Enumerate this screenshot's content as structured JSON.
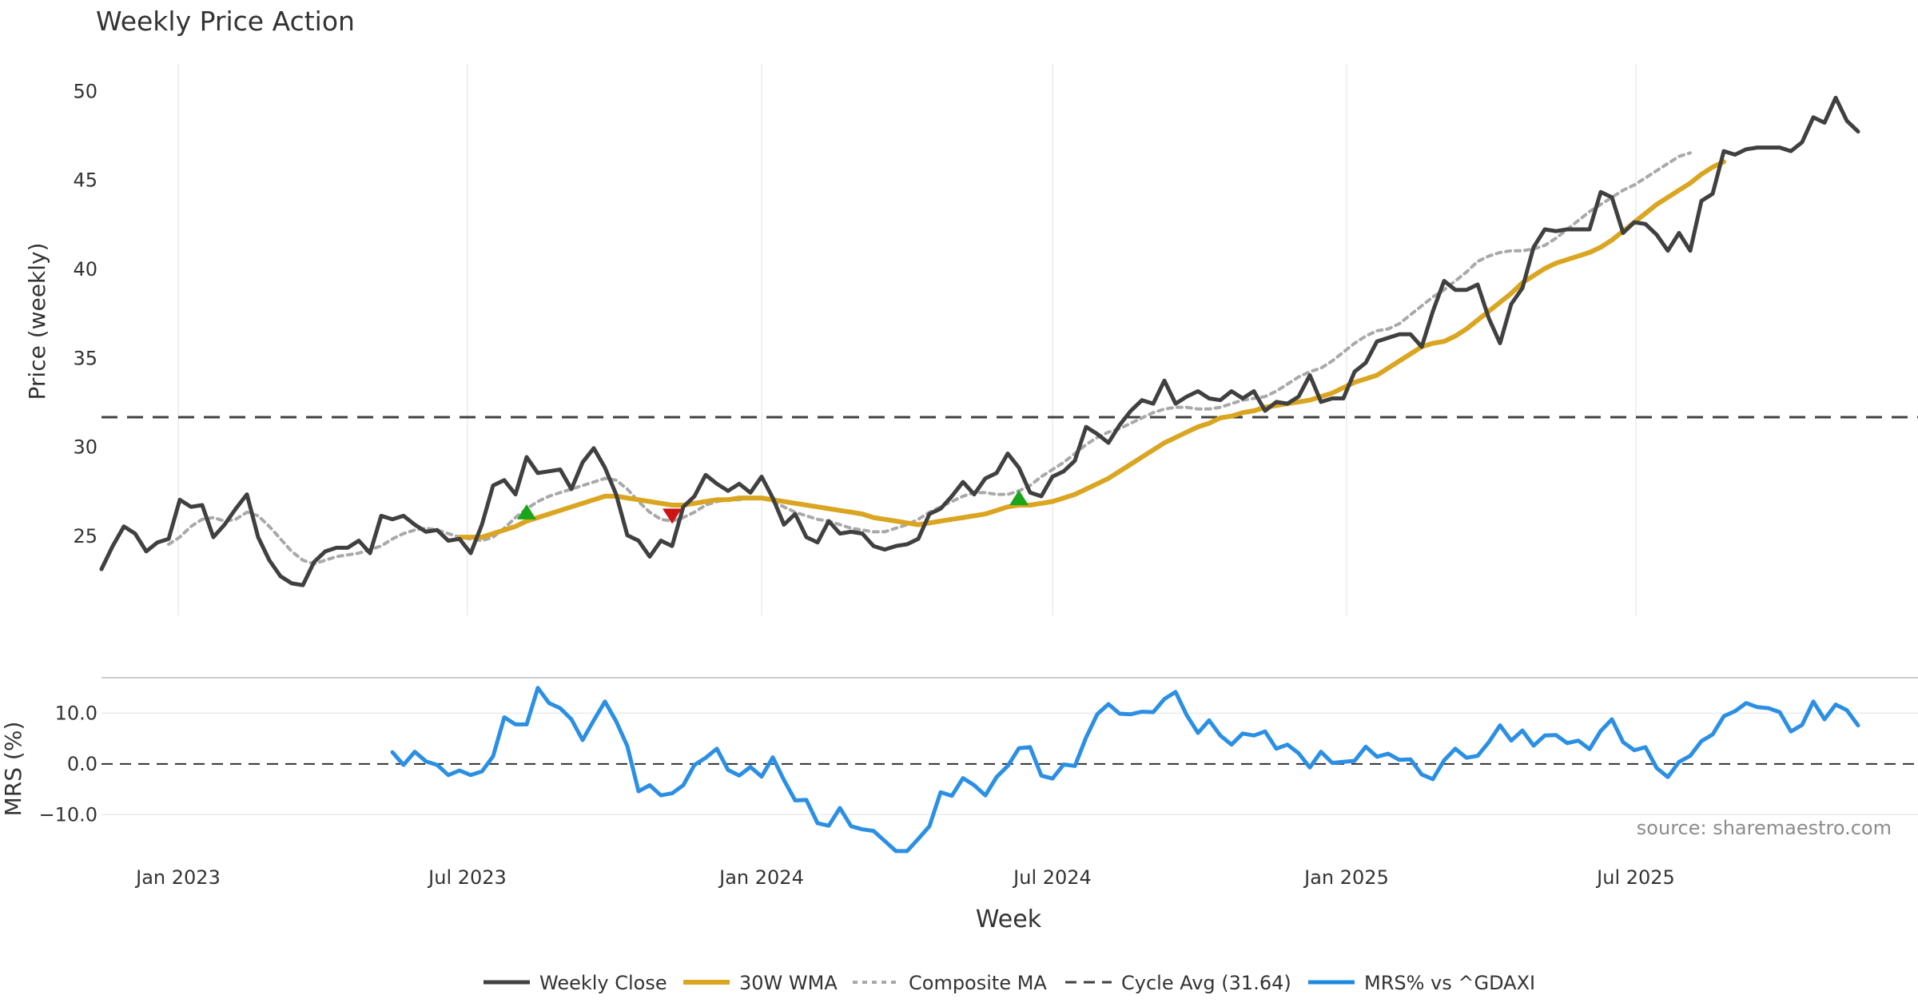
{
  "chart_data": {
    "type": "line",
    "title": "Weekly Price Action",
    "source": "source: sharemaestro.com",
    "price_panel": {
      "ylabel": "Price (weekly)",
      "ylim": [
        20.5,
        51.5
      ],
      "yticks": [
        25,
        30,
        35,
        40,
        45,
        50
      ],
      "grid": "vertical",
      "cycle_avg": 31.64,
      "start_date": "2022-11-14",
      "weekly_close": [
        23.1,
        24.4,
        25.5,
        25.1,
        24.1,
        24.6,
        24.8,
        27.0,
        26.6,
        26.7,
        24.9,
        25.6,
        26.5,
        27.3,
        24.9,
        23.6,
        22.7,
        22.3,
        22.2,
        23.5,
        24.1,
        24.3,
        24.3,
        24.7,
        24.0,
        26.1,
        25.9,
        26.1,
        25.6,
        25.2,
        25.3,
        24.7,
        24.8,
        24.0,
        25.6,
        27.8,
        28.1,
        27.3,
        29.4,
        28.5,
        28.6,
        28.7,
        27.6,
        29.1,
        29.9,
        28.8,
        27.3,
        25.0,
        24.7,
        23.8,
        24.7,
        24.4,
        26.6,
        27.2,
        28.4,
        27.9,
        27.5,
        27.9,
        27.4,
        28.3,
        27.1,
        25.6,
        26.2,
        24.9,
        24.6,
        25.8,
        25.1,
        25.2,
        25.1,
        24.4,
        24.2,
        24.4,
        24.5,
        24.8,
        26.2,
        26.5,
        27.2,
        28.0,
        27.3,
        28.2,
        28.5,
        29.6,
        28.8,
        27.4,
        27.2,
        28.3,
        28.6,
        29.2,
        31.1,
        30.7,
        30.2,
        31.2,
        32.0,
        32.6,
        32.4,
        33.7,
        32.4,
        32.8,
        33.1,
        32.7,
        32.6,
        33.1,
        32.7,
        33.1,
        32.0,
        32.5,
        32.4,
        32.8,
        34.0,
        32.5,
        32.7,
        32.7,
        34.2,
        34.7,
        35.9,
        36.1,
        36.3,
        36.3,
        35.6,
        37.6,
        39.3,
        38.8,
        38.8,
        39.1,
        37.2,
        35.8,
        38.0,
        38.9,
        41.2,
        42.2,
        42.1,
        42.2,
        42.2,
        42.2,
        44.3,
        44.0,
        42.0,
        42.6,
        42.5,
        41.9,
        41.0,
        42.0,
        41.0,
        43.8,
        44.2,
        46.6,
        46.4,
        46.7,
        46.8,
        46.8,
        46.8,
        46.6,
        47.1,
        48.5,
        48.2,
        49.6,
        48.3,
        47.7
      ],
      "wma_30w": {
        "start_index": 32,
        "values": [
          24.9,
          24.9,
          24.9,
          25.1,
          25.3,
          25.5,
          25.8,
          26.0,
          26.2,
          26.4,
          26.6,
          26.8,
          27.0,
          27.2,
          27.2,
          27.1,
          27.0,
          26.9,
          26.8,
          26.7,
          26.7,
          26.8,
          26.9,
          27.0,
          27.0,
          27.1,
          27.1,
          27.1,
          27.0,
          26.9,
          26.8,
          26.7,
          26.6,
          26.5,
          26.4,
          26.3,
          26.2,
          26.0,
          25.9,
          25.8,
          25.7,
          25.6,
          25.7,
          25.8,
          25.9,
          26.0,
          26.1,
          26.2,
          26.4,
          26.6,
          26.7,
          26.7,
          26.8,
          26.9,
          27.1,
          27.3,
          27.6,
          27.9,
          28.2,
          28.6,
          29.0,
          29.4,
          29.8,
          30.2,
          30.5,
          30.8,
          31.1,
          31.3,
          31.6,
          31.7,
          31.9,
          32.0,
          32.2,
          32.3,
          32.4,
          32.5,
          32.6,
          32.8,
          33.0,
          33.3,
          33.6,
          33.8,
          34.0,
          34.4,
          34.8,
          35.2,
          35.6,
          35.8,
          35.9,
          36.2,
          36.6,
          37.1,
          37.6,
          38.1,
          38.6,
          39.2,
          39.6,
          40.0,
          40.3,
          40.5,
          40.7,
          40.9,
          41.2,
          41.6,
          42.1,
          42.6,
          43.1,
          43.6,
          44.0,
          44.4,
          44.8,
          45.3,
          45.7,
          46.0
        ]
      },
      "composite_ma": {
        "start_index": 6,
        "values": [
          24.5,
          24.9,
          25.5,
          25.9,
          26.0,
          25.8,
          25.9,
          26.3,
          26.1,
          25.5,
          24.8,
          24.1,
          23.6,
          23.4,
          23.6,
          23.8,
          23.9,
          24.0,
          24.2,
          24.4,
          24.8,
          25.1,
          25.3,
          25.4,
          25.3,
          25.1,
          24.9,
          24.8,
          24.7,
          24.9,
          25.4,
          26.0,
          26.5,
          26.9,
          27.2,
          27.4,
          27.6,
          27.8,
          28.0,
          28.2,
          28.1,
          27.6,
          26.9,
          26.3,
          25.9,
          25.8,
          26.0,
          26.3,
          26.7,
          26.9,
          27.0,
          27.0,
          27.1,
          27.1,
          26.9,
          26.6,
          26.3,
          26.1,
          25.9,
          25.8,
          25.6,
          25.4,
          25.3,
          25.2,
          25.2,
          25.4,
          25.6,
          25.9,
          26.3,
          26.6,
          26.9,
          27.2,
          27.4,
          27.4,
          27.3,
          27.3,
          27.5,
          27.8,
          28.3,
          28.7,
          29.1,
          29.6,
          30.1,
          30.5,
          30.8,
          31.0,
          31.3,
          31.6,
          31.9,
          32.1,
          32.2,
          32.2,
          32.1,
          32.1,
          32.2,
          32.4,
          32.6,
          32.7,
          32.8,
          33.1,
          33.5,
          33.9,
          34.2,
          34.4,
          34.8,
          35.3,
          35.8,
          36.2,
          36.5,
          36.6,
          36.9,
          37.4,
          37.9,
          38.4,
          38.8,
          39.3,
          39.8,
          40.4,
          40.7,
          40.9,
          41.0,
          41.0,
          41.1,
          41.3,
          41.7,
          42.2,
          42.7,
          43.2,
          43.6,
          44.0,
          44.4,
          44.7,
          45.1,
          45.5,
          45.9,
          46.3,
          46.5
        ]
      },
      "signals": [
        {
          "type": "buy",
          "index": 38,
          "value": 26.3
        },
        {
          "type": "sell",
          "index": 51,
          "value": 26.1
        },
        {
          "type": "buy",
          "index": 82,
          "value": 27.1
        }
      ]
    },
    "mrs_panel": {
      "ylabel": "MRS (%)",
      "ylim": [
        -18,
        17
      ],
      "yticks": [
        10.0,
        0.0,
        -10.0
      ],
      "ytick_labels": [
        "10.0",
        "0.0",
        "−10.0"
      ],
      "start_index": 26,
      "values": [
        2.3,
        -0.2,
        2.4,
        0.5,
        -0.2,
        -2.2,
        -1.3,
        -2.2,
        -1.5,
        1.5,
        9.2,
        7.8,
        7.8,
        15.0,
        12.0,
        11.0,
        8.8,
        4.7,
        8.6,
        12.3,
        8.4,
        3.5,
        -5.4,
        -4.2,
        -6.2,
        -5.8,
        -4.2,
        -0.2,
        1.2,
        3.0,
        -1.2,
        -2.3,
        -0.6,
        -2.5,
        1.3,
        -3.2,
        -7.2,
        -7.1,
        -11.7,
        -12.2,
        -8.7,
        -12.3,
        -12.9,
        -13.2,
        -15.2,
        -17.2,
        -17.2,
        -14.8,
        -12.3,
        -5.6,
        -6.3,
        -2.8,
        -4.2,
        -6.2,
        -2.6,
        -0.4,
        3.1,
        3.3,
        -2.3,
        -2.9,
        -0.1,
        -0.4,
        5.2,
        9.8,
        11.8,
        9.9,
        9.8,
        10.3,
        10.2,
        12.8,
        14.2,
        9.6,
        6.1,
        8.6,
        5.6,
        3.8,
        6.0,
        5.6,
        6.4,
        3.0,
        3.8,
        2.1,
        -0.7,
        2.4,
        0.2,
        0.4,
        0.6,
        3.4,
        1.4,
        2.0,
        0.8,
        0.9,
        -2.1,
        -3.0,
        0.7,
        3.0,
        1.2,
        1.6,
        4.3,
        7.6,
        4.6,
        6.6,
        3.6,
        5.6,
        5.7,
        4.1,
        4.6,
        2.9,
        6.5,
        8.8,
        4.3,
        2.7,
        3.3,
        -0.8,
        -2.6,
        0.4,
        1.6,
        4.5,
        5.8,
        9.4,
        10.4,
        12.0,
        11.2,
        11.0,
        10.2,
        6.4,
        7.7,
        12.3,
        8.8,
        11.7,
        10.6,
        7.6
      ]
    },
    "xlabel": "Week",
    "xticks": [
      {
        "label": "Jan 2023",
        "date": "2023-01-01"
      },
      {
        "label": "Jul 2023",
        "date": "2023-07-01"
      },
      {
        "label": "Jan 2024",
        "date": "2024-01-01"
      },
      {
        "label": "Jul 2024",
        "date": "2024-07-01"
      },
      {
        "label": "Jan 2025",
        "date": "2025-01-01"
      },
      {
        "label": "Jul 2025",
        "date": "2025-07-01"
      }
    ],
    "legend": {
      "placement": "bottom-center",
      "items": [
        {
          "key": "close",
          "label": "Weekly Close",
          "color": "#404040",
          "style": "solid"
        },
        {
          "key": "wma",
          "label": "30W WMA",
          "color": "#DAA520",
          "style": "solid"
        },
        {
          "key": "composite",
          "label": "Composite MA",
          "color": "#A9A9A9",
          "style": "dotted"
        },
        {
          "key": "cycle",
          "label": "Cycle Avg (31.64)",
          "color": "#404040",
          "style": "dashed"
        },
        {
          "key": "mrs",
          "label": "MRS% vs ^GDAXI",
          "color": "#1E88E5",
          "style": "solid"
        }
      ]
    },
    "colors": {
      "close": "#404040",
      "wma": "#DAA520",
      "composite": "#A9A9A9",
      "mrs": "#2B8FE3",
      "buy": "#1AA51A",
      "sell": "#CC1414",
      "grid": "#EBEBEB",
      "text": "#333333",
      "source": "#8C8C8C"
    }
  }
}
